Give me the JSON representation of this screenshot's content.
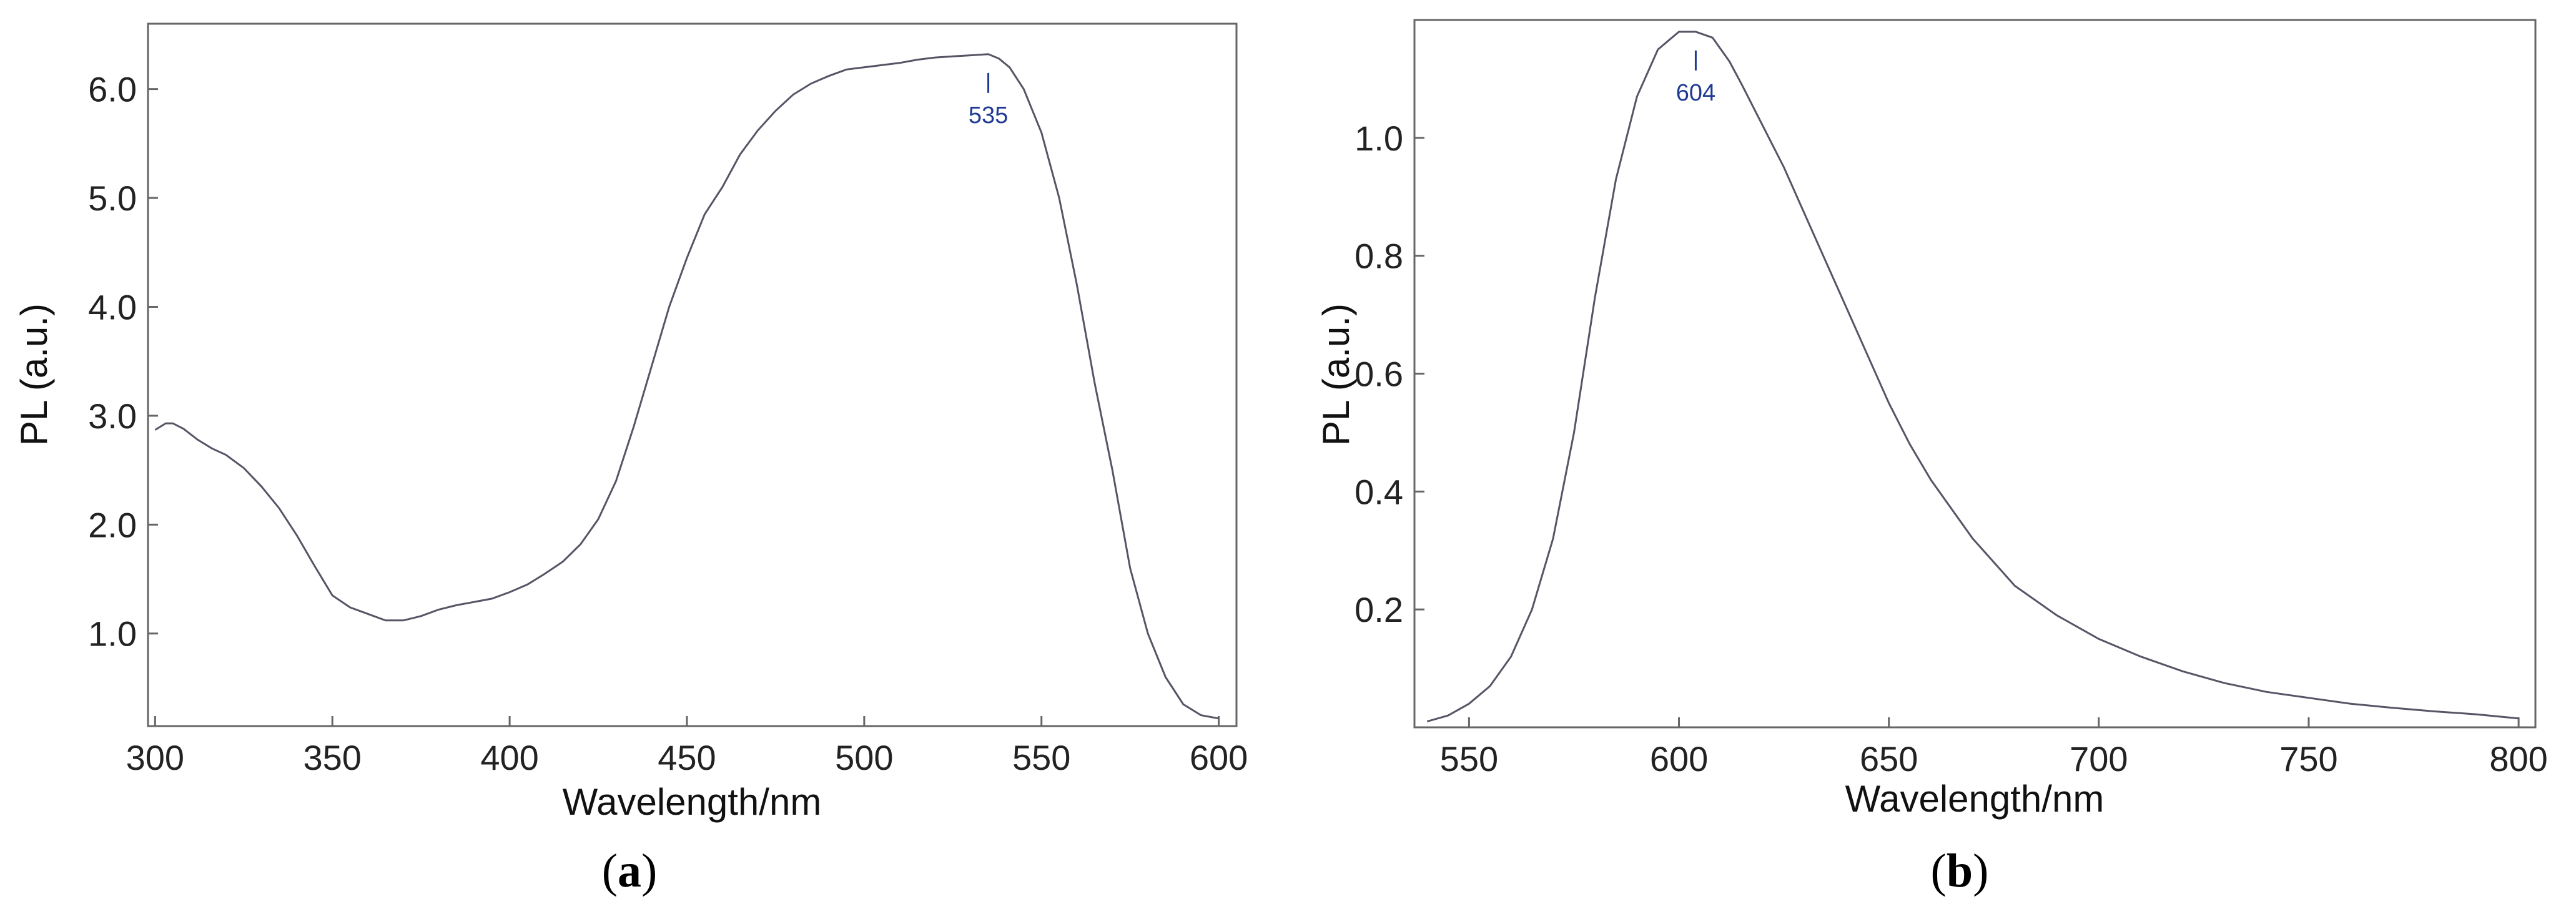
{
  "chart_data": [
    {
      "type": "line",
      "panel_label": "a",
      "xlabel": "Wavelength/nm",
      "ylabel": "PL (a.u.)",
      "xlim": [
        298,
        605
      ],
      "ylim": [
        0.15,
        6.6
      ],
      "xticks": [
        300,
        350,
        400,
        450,
        500,
        550,
        600
      ],
      "yticks": [
        1.0,
        2.0,
        3.0,
        4.0,
        5.0,
        6.0
      ],
      "ytick_labels": [
        "1.0",
        "2.0",
        "3.0",
        "4.0",
        "5.0",
        "6.0"
      ],
      "grid": false,
      "line_color": "#555566",
      "annotation": {
        "x": 535,
        "y": 6.32,
        "label": "535"
      },
      "series": [
        {
          "x": [
            300,
            303,
            305,
            308,
            312,
            316,
            320,
            325,
            330,
            335,
            340,
            345,
            350,
            355,
            360,
            365,
            370,
            375,
            380,
            385,
            390,
            395,
            400,
            405,
            410,
            415,
            420,
            425,
            430,
            435,
            440,
            445,
            450,
            455,
            460,
            465,
            470,
            475,
            480,
            485,
            490,
            495,
            500,
            505,
            510,
            515,
            520,
            525,
            530,
            535,
            538,
            541,
            545,
            550,
            555,
            560,
            565,
            570,
            575,
            580,
            585,
            590,
            595,
            600
          ],
          "y": [
            2.87,
            2.93,
            2.93,
            2.88,
            2.78,
            2.7,
            2.64,
            2.52,
            2.35,
            2.15,
            1.9,
            1.62,
            1.35,
            1.24,
            1.18,
            1.12,
            1.12,
            1.16,
            1.22,
            1.26,
            1.29,
            1.32,
            1.38,
            1.45,
            1.55,
            1.66,
            1.82,
            2.05,
            2.4,
            2.9,
            3.45,
            4.0,
            4.45,
            4.85,
            5.1,
            5.4,
            5.62,
            5.8,
            5.95,
            6.05,
            6.12,
            6.18,
            6.2,
            6.22,
            6.24,
            6.27,
            6.29,
            6.3,
            6.31,
            6.32,
            6.28,
            6.2,
            6.0,
            5.6,
            5.0,
            4.2,
            3.3,
            2.5,
            1.6,
            1.0,
            0.6,
            0.35,
            0.25,
            0.22
          ]
        }
      ]
    },
    {
      "type": "line",
      "panel_label": "b",
      "xlabel": "Wavelength/nm",
      "ylabel": "PL (a.u.)",
      "xlim": [
        537,
        804
      ],
      "ylim": [
        0.0,
        1.2
      ],
      "xticks": [
        550,
        600,
        650,
        700,
        750,
        800
      ],
      "yticks": [
        0.2,
        0.4,
        0.6,
        0.8,
        1.0
      ],
      "ytick_labels": [
        "0.2",
        "0.4",
        "0.6",
        "0.8",
        "1.0"
      ],
      "grid": false,
      "line_color": "#555566",
      "annotation": {
        "x": 604,
        "y": 1.18,
        "label": "604"
      },
      "series": [
        {
          "x": [
            540,
            545,
            550,
            555,
            560,
            565,
            570,
            575,
            580,
            585,
            590,
            595,
            600,
            604,
            608,
            612,
            615,
            620,
            625,
            630,
            635,
            640,
            645,
            650,
            655,
            660,
            665,
            670,
            675,
            680,
            690,
            700,
            710,
            720,
            730,
            740,
            750,
            760,
            770,
            780,
            790,
            800
          ],
          "y": [
            0.01,
            0.02,
            0.04,
            0.07,
            0.12,
            0.2,
            0.32,
            0.5,
            0.73,
            0.93,
            1.07,
            1.15,
            1.18,
            1.18,
            1.17,
            1.13,
            1.09,
            1.02,
            0.95,
            0.87,
            0.79,
            0.71,
            0.63,
            0.55,
            0.48,
            0.42,
            0.37,
            0.32,
            0.28,
            0.24,
            0.19,
            0.15,
            0.12,
            0.095,
            0.075,
            0.06,
            0.05,
            0.04,
            0.033,
            0.027,
            0.022,
            0.015
          ]
        }
      ]
    }
  ]
}
